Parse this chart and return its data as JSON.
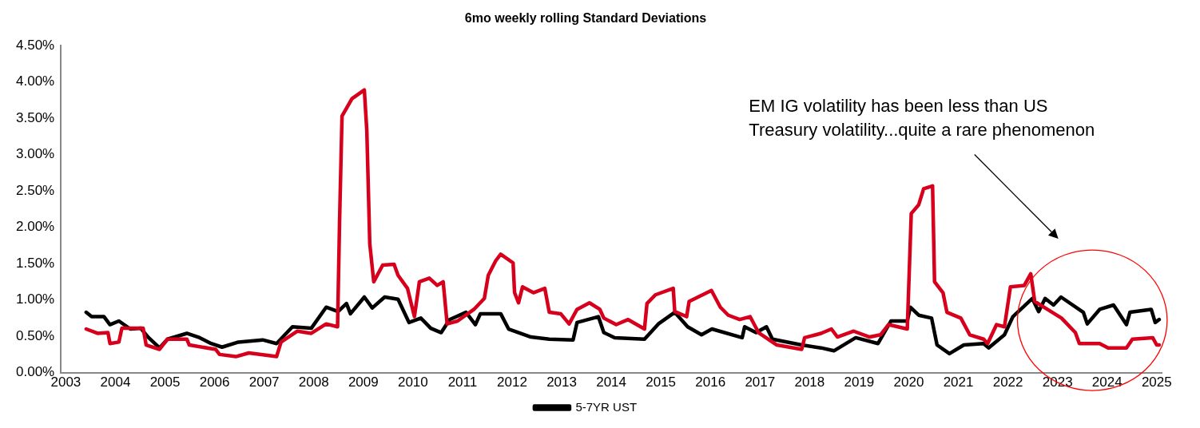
{
  "chart_data": {
    "type": "line",
    "title": "6mo weekly rolling Standard Deviations",
    "xlim": [
      2002.9,
      2025.1
    ],
    "xticks": [
      2003,
      2004,
      2005,
      2006,
      2007,
      2008,
      2009,
      2010,
      2011,
      2012,
      2013,
      2014,
      2015,
      2016,
      2017,
      2018,
      2019,
      2020,
      2021,
      2022,
      2023,
      2024,
      2025
    ],
    "ylim": [
      0,
      4.5
    ],
    "yticks": [
      {
        "value": 0,
        "label": "0.00%"
      },
      {
        "value": 0.5,
        "label": "0.50%"
      },
      {
        "value": 1,
        "label": "1.00%"
      },
      {
        "value": 1.5,
        "label": "1.50%"
      },
      {
        "value": 2,
        "label": "2.00%"
      },
      {
        "value": 2.5,
        "label": "2.50%"
      },
      {
        "value": 3,
        "label": "3.00%"
      },
      {
        "value": 3.5,
        "label": "3.50%"
      },
      {
        "value": 4,
        "label": "4.00%"
      },
      {
        "value": 4.5,
        "label": "4.50%"
      }
    ],
    "grid": false,
    "legend": "bottom",
    "marker": "none",
    "line_style": "solid",
    "annotations": [
      "EM IG volatility has been less than US Treasury volatility...quite a rare phenomenon"
    ],
    "series": [
      {
        "color": "#d7001c",
        "x": [
          2003.41,
          2003.64,
          2003.85,
          2003.89,
          2004.07,
          2004.13,
          2004.56,
          2004.62,
          2004.89,
          2005.05,
          2005.44,
          2005.49,
          2006.02,
          2006.1,
          2006.43,
          2006.69,
          2007.25,
          2007.34,
          2007.67,
          2007.95,
          2008.25,
          2008.48,
          2008.52,
          2008.57,
          2008.77,
          2009.02,
          2009.07,
          2009.13,
          2009.21,
          2009.39,
          2009.62,
          2009.7,
          2009.89,
          2010.03,
          2010.13,
          2010.33,
          2010.49,
          2010.61,
          2010.69,
          2010.9,
          2011.23,
          2011.44,
          2011.52,
          2011.67,
          2011.77,
          2012.02,
          2012.05,
          2012.13,
          2012.21,
          2012.43,
          2012.66,
          2012.75,
          2012.98,
          2013.15,
          2013.31,
          2013.56,
          2013.77,
          2013.85,
          2014.1,
          2014.34,
          2014.67,
          2014.72,
          2014.89,
          2015.25,
          2015.28,
          2015.52,
          2015.57,
          2016.02,
          2016.2,
          2016.36,
          2016.59,
          2016.8,
          2016.97,
          2017.34,
          2017.84,
          2017.9,
          2018.23,
          2018.44,
          2018.56,
          2018.89,
          2019.21,
          2019.43,
          2019.59,
          2019.97,
          2020.05,
          2020.2,
          2020.3,
          2020.48,
          2020.52,
          2020.69,
          2020.77,
          2021.05,
          2021.23,
          2021.51,
          2021.59,
          2021.77,
          2021.93,
          2022.05,
          2022.33,
          2022.46,
          2022.54,
          2022.75,
          2023.08,
          2023.36,
          2023.44,
          2023.85,
          2024.02,
          2024.39,
          2024.51,
          2024.92,
          2025.0,
          2025.05
        ],
        "values": [
          0.6,
          0.54,
          0.55,
          0.4,
          0.42,
          0.61,
          0.61,
          0.38,
          0.32,
          0.46,
          0.46,
          0.38,
          0.32,
          0.25,
          0.22,
          0.27,
          0.22,
          0.42,
          0.57,
          0.54,
          0.67,
          0.63,
          2.07,
          3.53,
          3.77,
          3.89,
          3.33,
          1.77,
          1.25,
          1.48,
          1.49,
          1.34,
          1.16,
          0.77,
          1.25,
          1.3,
          1.2,
          1.25,
          0.67,
          0.71,
          0.87,
          1.02,
          1.34,
          1.54,
          1.63,
          1.51,
          1.1,
          0.96,
          1.18,
          1.1,
          1.16,
          0.83,
          0.81,
          0.67,
          0.87,
          0.96,
          0.87,
          0.75,
          0.66,
          0.73,
          0.6,
          0.95,
          1.07,
          1.16,
          0.84,
          0.77,
          0.98,
          1.13,
          0.9,
          0.79,
          0.73,
          0.77,
          0.55,
          0.38,
          0.32,
          0.48,
          0.54,
          0.6,
          0.49,
          0.57,
          0.49,
          0.52,
          0.66,
          0.6,
          2.19,
          2.31,
          2.53,
          2.57,
          1.25,
          1.1,
          0.83,
          0.75,
          0.52,
          0.46,
          0.4,
          0.66,
          0.63,
          1.18,
          1.2,
          1.36,
          0.98,
          0.89,
          0.75,
          0.55,
          0.4,
          0.4,
          0.34,
          0.34,
          0.46,
          0.48,
          0.38,
          0.38
        ]
      },
      {
        "name": "5-7YR UST",
        "color": "#000000",
        "x": [
          2003.41,
          2003.52,
          2003.77,
          2003.89,
          2004.07,
          2004.3,
          2004.51,
          2004.67,
          2004.89,
          2005.05,
          2005.44,
          2005.7,
          2005.93,
          2006.15,
          2006.48,
          2006.97,
          2007.25,
          2007.57,
          2007.95,
          2008.25,
          2008.49,
          2008.66,
          2008.74,
          2009.02,
          2009.18,
          2009.43,
          2009.7,
          2009.92,
          2010.16,
          2010.36,
          2010.57,
          2010.74,
          2011.07,
          2011.26,
          2011.36,
          2011.77,
          2011.93,
          2012.38,
          2012.75,
          2013.23,
          2013.31,
          2013.74,
          2013.85,
          2014.07,
          2014.67,
          2014.95,
          2015.28,
          2015.54,
          2015.82,
          2016.03,
          2016.64,
          2016.69,
          2016.92,
          2017.13,
          2017.25,
          2017.84,
          2018.23,
          2018.49,
          2018.93,
          2019.38,
          2019.64,
          2019.97,
          2020.03,
          2020.2,
          2020.46,
          2020.57,
          2020.82,
          2021.11,
          2021.51,
          2021.61,
          2021.93,
          2022.1,
          2022.49,
          2022.62,
          2022.75,
          2022.92,
          2023.07,
          2023.52,
          2023.6,
          2023.85,
          2024.13,
          2024.39,
          2024.46,
          2024.89,
          2024.97,
          2025.05
        ],
        "values": [
          0.83,
          0.77,
          0.77,
          0.66,
          0.71,
          0.6,
          0.61,
          0.48,
          0.34,
          0.46,
          0.54,
          0.48,
          0.4,
          0.35,
          0.42,
          0.45,
          0.4,
          0.63,
          0.61,
          0.9,
          0.84,
          0.95,
          0.81,
          1.04,
          0.89,
          1.04,
          1.01,
          0.69,
          0.75,
          0.61,
          0.55,
          0.73,
          0.83,
          0.66,
          0.81,
          0.81,
          0.6,
          0.49,
          0.46,
          0.45,
          0.69,
          0.77,
          0.55,
          0.48,
          0.46,
          0.67,
          0.83,
          0.63,
          0.52,
          0.6,
          0.48,
          0.63,
          0.55,
          0.63,
          0.46,
          0.38,
          0.34,
          0.3,
          0.48,
          0.4,
          0.71,
          0.71,
          0.9,
          0.79,
          0.75,
          0.38,
          0.26,
          0.38,
          0.4,
          0.34,
          0.52,
          0.77,
          1.02,
          0.84,
          1.02,
          0.93,
          1.04,
          0.83,
          0.67,
          0.87,
          0.93,
          0.66,
          0.83,
          0.87,
          0.69,
          0.73
        ]
      }
    ]
  }
}
